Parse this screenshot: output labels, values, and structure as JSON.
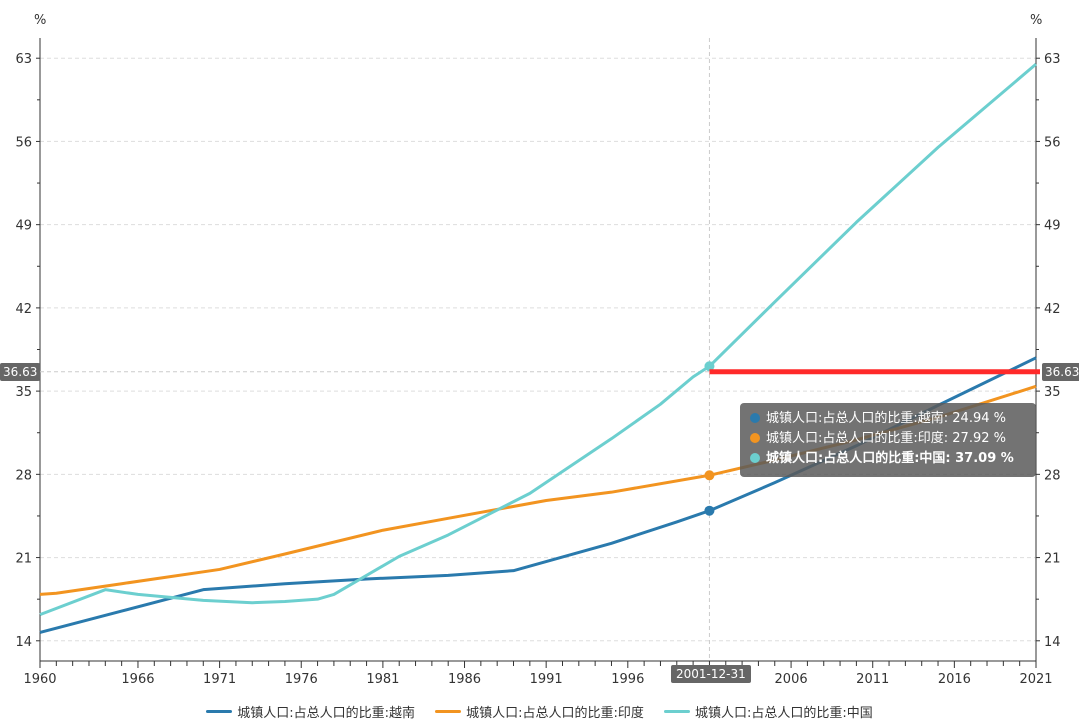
{
  "chart_data": {
    "type": "line",
    "y_unit_left": "%",
    "y_unit_right": "%",
    "ylim": [
      12.3,
      64.7
    ],
    "yticks": [
      14,
      21,
      28,
      35,
      42,
      49,
      56,
      63
    ],
    "xlim": [
      1960,
      2021
    ],
    "xticks": [
      1960,
      1966,
      1971,
      1976,
      1981,
      1986,
      1991,
      1996,
      2001,
      2006,
      2011,
      2016,
      2021
    ],
    "grid": true,
    "legend_position": "bottom",
    "series": [
      {
        "name": "城镇人口:占总人口的比重:越南",
        "color": "#2a7aad",
        "points": [
          [
            1960,
            14.7
          ],
          [
            1965,
            16.5
          ],
          [
            1970,
            18.3
          ],
          [
            1975,
            18.8
          ],
          [
            1980,
            19.2
          ],
          [
            1985,
            19.5
          ],
          [
            1989,
            19.9
          ],
          [
            1995,
            22.2
          ],
          [
            1999,
            24.0
          ],
          [
            2001,
            24.94
          ],
          [
            2005,
            27.3
          ],
          [
            2010,
            30.4
          ],
          [
            2015,
            33.8
          ],
          [
            2021,
            37.8
          ]
        ]
      },
      {
        "name": "城镇人口:占总人口的比重:印度",
        "color": "#f29420",
        "points": [
          [
            1960,
            17.9
          ],
          [
            1961,
            18.0
          ],
          [
            1965,
            18.8
          ],
          [
            1971,
            20.0
          ],
          [
            1975,
            21.3
          ],
          [
            1981,
            23.3
          ],
          [
            1985,
            24.3
          ],
          [
            1991,
            25.8
          ],
          [
            1995,
            26.5
          ],
          [
            2001,
            27.92
          ],
          [
            2005,
            29.2
          ],
          [
            2010,
            30.9
          ],
          [
            2015,
            32.8
          ],
          [
            2021,
            35.4
          ]
        ]
      },
      {
        "name": "城镇人口:占总人口的比重:中国",
        "color": "#6ccfcf",
        "points": [
          [
            1960,
            16.2
          ],
          [
            1964,
            18.3
          ],
          [
            1966,
            17.9
          ],
          [
            1970,
            17.4
          ],
          [
            1973,
            17.2
          ],
          [
            1975,
            17.3
          ],
          [
            1977,
            17.5
          ],
          [
            1978,
            17.9
          ],
          [
            1982,
            21.1
          ],
          [
            1985,
            22.9
          ],
          [
            1990,
            26.4
          ],
          [
            1995,
            31.0
          ],
          [
            1998,
            33.9
          ],
          [
            2000,
            36.2
          ],
          [
            2001,
            37.09
          ],
          [
            2005,
            42.5
          ],
          [
            2010,
            49.2
          ],
          [
            2015,
            55.5
          ],
          [
            2021,
            62.5
          ]
        ]
      }
    ],
    "crosshair": {
      "x_label": "2001-12-31",
      "x": 2001,
      "y": 36.63,
      "y_label": "36.63"
    },
    "reference_line": {
      "value": 36.63,
      "from": 2001,
      "to": 2021,
      "color": "#ff2a2a"
    },
    "tooltip": [
      {
        "label": "城镇人口:占总人口的比重:越南: 24.94  %",
        "color": "#2a7aad"
      },
      {
        "label": "城镇人口:占总人口的比重:印度: 27.92  %",
        "color": "#f29420"
      },
      {
        "label": "城镇人口:占总人口的比重:中国: 37.09  %",
        "color": "#6ccfcf"
      }
    ]
  }
}
